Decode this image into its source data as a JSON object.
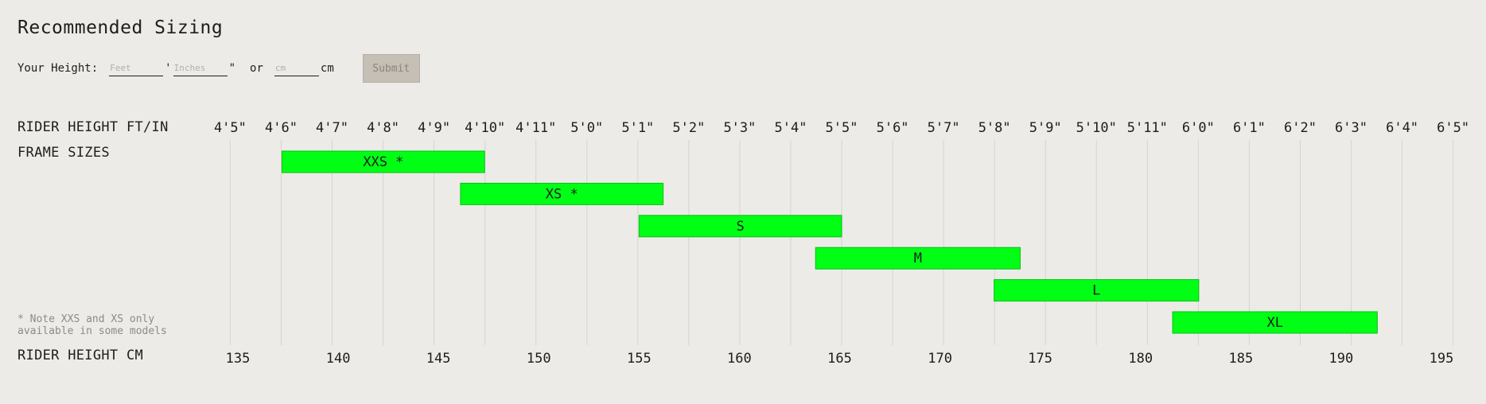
{
  "header": {
    "title": "Recommended Sizing"
  },
  "form": {
    "height_label": "Your Height:",
    "feet_placeholder": "Feet",
    "feet_mark": "'",
    "inches_placeholder": "Inches",
    "inches_mark": "\"",
    "or_label": "or",
    "cm_placeholder": "cm",
    "cm_unit": "cm",
    "submit_label": "Submit"
  },
  "labels": {
    "ftin_row": "RIDER HEIGHT FT/IN",
    "frame_row": "FRAME SIZES",
    "cm_row": "RIDER HEIGHT CM",
    "note": "* Note XXS and XS only\navailable in some models"
  },
  "colors": {
    "bar": "#00ff14",
    "bar_border": "#00c010",
    "grid": "#d6d4ce",
    "text": "#1d1d1b",
    "background": "#ecebe7"
  },
  "chart_data": {
    "type": "bar",
    "orientation": "horizontal-range",
    "xlim": [
      135,
      195
    ],
    "grid": true,
    "x_ticks_cm": [
      135,
      140,
      145,
      150,
      155,
      160,
      165,
      170,
      175,
      180,
      185,
      190,
      195
    ],
    "x_ticks_ftin": [
      "4'5\"",
      "4'6\"",
      "4'7\"",
      "4'8\"",
      "4'9\"",
      "4'10\"",
      "4'11\"",
      "5'0\"",
      "5'1\"",
      "5'2\"",
      "5'3\"",
      "5'4\"",
      "5'5\"",
      "5'6\"",
      "5'7\"",
      "5'8\"",
      "5'9\"",
      "5'10\"",
      "5'11\"",
      "6'0\"",
      "6'1\"",
      "6'2\"",
      "6'3\"",
      "6'4\"",
      "6'5\""
    ],
    "ftin_inches": [
      53,
      54,
      55,
      56,
      57,
      58,
      59,
      60,
      61,
      62,
      63,
      64,
      65,
      66,
      67,
      68,
      69,
      70,
      71,
      72,
      73,
      74,
      75,
      76,
      77
    ],
    "categories": [
      "XXS *",
      "XS *",
      "S",
      "M",
      "L",
      "XL"
    ],
    "ranges": [
      [
        137.2,
        147.3
      ],
      [
        146.1,
        156.2
      ],
      [
        155,
        165.1
      ],
      [
        163.8,
        174
      ],
      [
        172.7,
        182.9
      ],
      [
        181.6,
        191.8
      ]
    ]
  }
}
